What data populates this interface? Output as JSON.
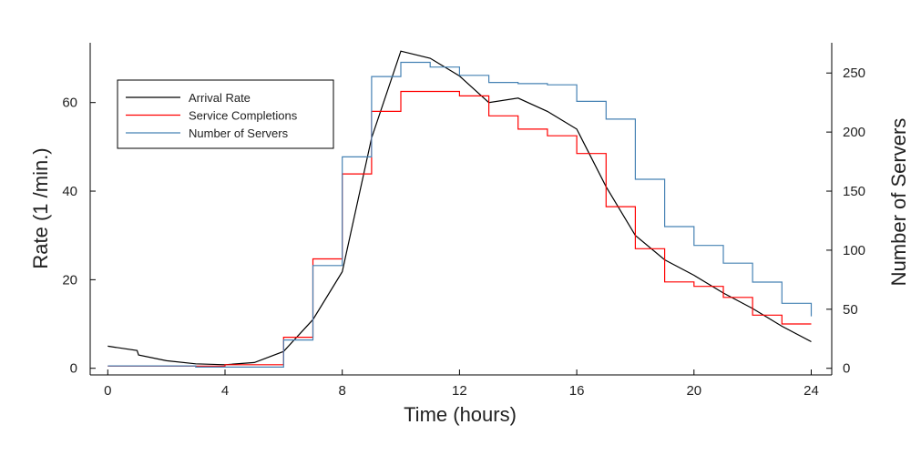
{
  "chart_data": {
    "type": "line",
    "xlabel": "Time (hours)",
    "ylabel": "Rate (1 /min.)",
    "y2label": "Number of Servers",
    "xlim": [
      -0.6,
      24.7
    ],
    "ylim": [
      -1.5,
      73.5
    ],
    "y2lim": [
      -5.6,
      275.6
    ],
    "xticks": [
      0,
      4,
      8,
      12,
      16,
      20,
      24
    ],
    "yticks": [
      0,
      20,
      40,
      60
    ],
    "y2ticks": [
      0,
      50,
      100,
      150,
      200,
      250
    ],
    "grid": false,
    "legend_position": "top-left",
    "series": [
      {
        "name": "Arrival Rate",
        "axis": "left",
        "style": "line",
        "color": "#000000",
        "x": [
          0,
          1,
          1.05,
          2,
          3,
          4,
          5,
          6,
          7,
          8,
          9,
          10,
          11,
          12,
          13,
          14,
          15,
          16,
          17,
          18,
          19,
          20,
          21,
          22,
          23,
          24
        ],
        "y": [
          5.0,
          4.0,
          3.0,
          1.7,
          1.0,
          0.8,
          1.3,
          3.8,
          11.0,
          21.8,
          52.0,
          71.6,
          70.0,
          66.0,
          60.0,
          61.0,
          58.0,
          54.0,
          41.0,
          30.0,
          24.5,
          21.0,
          17.0,
          13.5,
          9.5,
          6.0
        ]
      },
      {
        "name": "Service Completions",
        "axis": "left",
        "style": "step",
        "color": "#ff0000",
        "x": [
          0,
          1,
          2,
          3,
          4,
          5,
          6,
          7,
          8,
          9,
          10,
          11,
          12,
          13,
          14,
          15,
          16,
          17,
          18,
          19,
          20,
          21,
          22,
          23,
          24
        ],
        "y": [
          0.5,
          0.5,
          0.5,
          0.5,
          0.8,
          0.8,
          7.0,
          24.7,
          43.9,
          58.0,
          62.5,
          62.5,
          61.5,
          57.0,
          54.0,
          52.5,
          48.5,
          36.5,
          27.0,
          19.5,
          18.5,
          16.0,
          12.0,
          10.0,
          10.0
        ]
      },
      {
        "name": "Number of Servers",
        "axis": "right",
        "style": "step",
        "color": "#4682b4",
        "x": [
          0,
          1,
          2,
          3,
          4,
          5,
          6,
          7,
          8,
          9,
          10,
          11,
          12,
          13,
          14,
          15,
          16,
          17,
          18,
          19,
          20,
          21,
          22,
          23,
          24
        ],
        "y": [
          2,
          2,
          2,
          1,
          1,
          1,
          24,
          87,
          179,
          247,
          259,
          255,
          248,
          242,
          241,
          240,
          226,
          211,
          160,
          120,
          104,
          89,
          73,
          55,
          44
        ]
      }
    ]
  }
}
